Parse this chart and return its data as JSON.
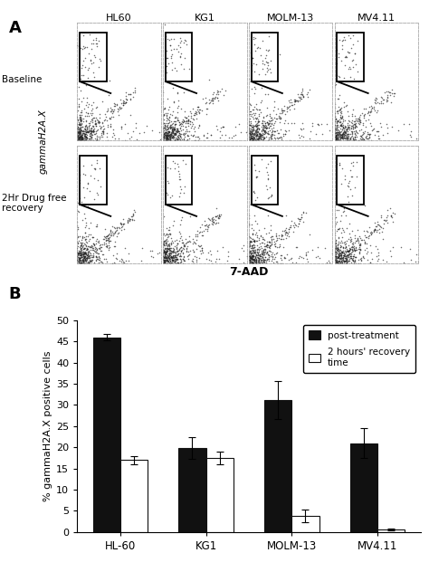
{
  "panel_A_label": "A",
  "panel_B_label": "B",
  "col_labels": [
    "HL60",
    "KG1",
    "MOLM-13",
    "MV4.11"
  ],
  "y_axis_label_A": "gammaH2A.X",
  "x_axis_label_A": "7-AAD",
  "bar_categories": [
    "HL-60",
    "KG1",
    "MOLM-13",
    "MV4.11"
  ],
  "post_treatment_values": [
    46.0,
    19.8,
    31.2,
    21.0
  ],
  "post_treatment_errors": [
    0.8,
    2.5,
    4.5,
    3.5
  ],
  "recovery_values": [
    17.0,
    17.5,
    3.7,
    0.6
  ],
  "recovery_errors": [
    1.0,
    1.5,
    1.5,
    0.3
  ],
  "bar_color_post": "#111111",
  "bar_color_recovery": "#ffffff",
  "bar_edgecolor": "#111111",
  "ylabel_B": "% gammaH2A.X positive cells",
  "ylim_B": [
    0,
    50
  ],
  "yticks_B": [
    0,
    5,
    10,
    15,
    20,
    25,
    30,
    35,
    40,
    45,
    50
  ],
  "legend_post": "post-treatment",
  "legend_recovery": "2 hours' recovery\ntime",
  "fig_bg": "#ffffff"
}
